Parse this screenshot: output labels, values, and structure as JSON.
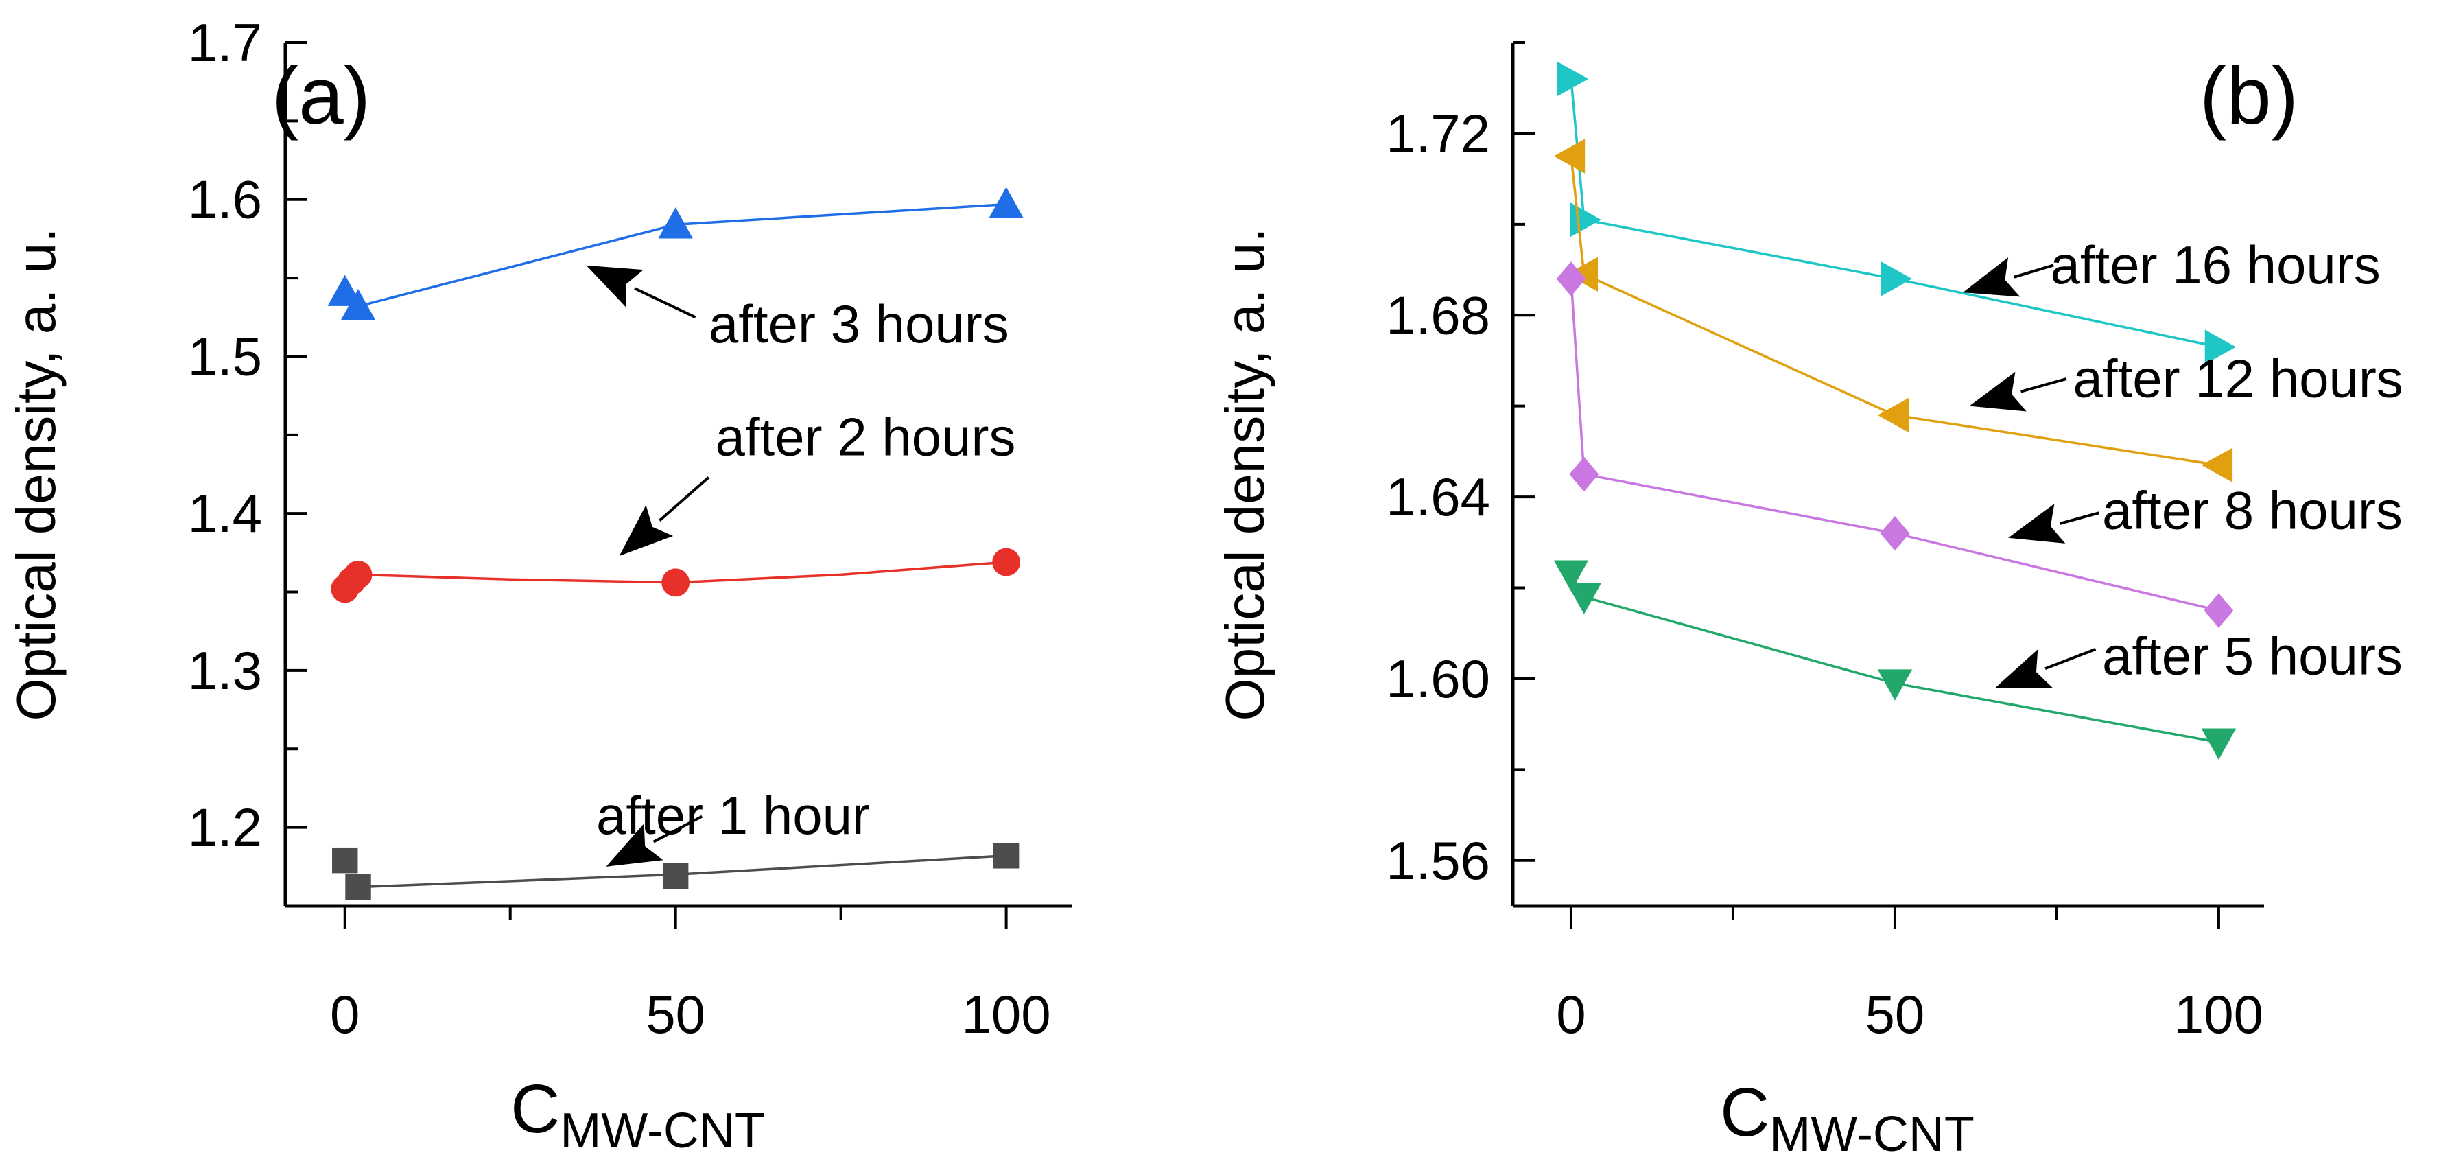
{
  "chart_data": [
    {
      "panel": "(a)",
      "type": "line",
      "xlabel_main": "C",
      "xlabel_sub": "MW-CNT",
      "ylabel": "Optical density, a. u.",
      "xlim": [
        -9,
        110
      ],
      "ylim": [
        1.15,
        1.7
      ],
      "xticks": [
        0,
        50,
        100
      ],
      "yticks": [
        1.2,
        1.3,
        1.4,
        1.5,
        1.6,
        1.7
      ],
      "ytick_labels": [
        "1.2",
        "1.3",
        "1.4",
        "1.5",
        "1.6",
        "1.7"
      ],
      "grid": false,
      "series": [
        {
          "name": "after 1 hour",
          "marker": "square",
          "color": "#4d4d4d",
          "points": [
            [
              0,
              1.179
            ],
            [
              2,
              1.162
            ],
            [
              50,
              1.169
            ],
            [
              100,
              1.182
            ]
          ],
          "fit": [
            [
              2,
              1.162
            ],
            [
              50,
              1.17
            ],
            [
              100,
              1.182
            ]
          ],
          "annotation": {
            "text": "after 1 hour",
            "text_at": [
              38,
              1.196
            ],
            "arrow_from": [
              54,
              1.207
            ],
            "arrow_to": [
              39.5,
              1.175
            ]
          }
        },
        {
          "name": "after 2 hours",
          "marker": "circle",
          "color": "#e8302a",
          "points": [
            [
              0,
              1.352
            ],
            [
              1,
              1.357
            ],
            [
              2,
              1.361
            ],
            [
              50,
              1.356
            ],
            [
              100,
              1.369
            ]
          ],
          "fit": [
            [
              2,
              1.361
            ],
            [
              25,
              1.358
            ],
            [
              50,
              1.356
            ],
            [
              75,
              1.361
            ],
            [
              100,
              1.369
            ]
          ],
          "annotation": {
            "text": "after 2 hours",
            "text_at": [
              56,
              1.437
            ],
            "arrow_from": [
              55,
              1.423
            ],
            "arrow_to": [
              41.5,
              1.373
            ]
          }
        },
        {
          "name": "after 3 hours",
          "marker": "triangle-up",
          "color": "#1f6ee8",
          "points": [
            [
              0,
              1.541
            ],
            [
              2,
              1.532
            ],
            [
              50,
              1.584
            ],
            [
              100,
              1.597
            ]
          ],
          "fit": [
            [
              2,
              1.532
            ],
            [
              50,
              1.584
            ],
            [
              100,
              1.597
            ]
          ],
          "annotation": {
            "text": "after 3 hours",
            "text_at": [
              55,
              1.509
            ],
            "arrow_from": [
              53,
              1.525
            ],
            "arrow_to": [
              36.5,
              1.558
            ]
          }
        }
      ]
    },
    {
      "panel": "(b)",
      "type": "line",
      "xlabel_main": "C",
      "xlabel_sub": "MW-CNT",
      "ylabel": "Optical density, a. u.",
      "xlim": [
        -9,
        107
      ],
      "ylim": [
        1.55,
        1.74
      ],
      "xticks": [
        0,
        50,
        100
      ],
      "yticks": [
        1.56,
        1.6,
        1.64,
        1.68,
        1.72
      ],
      "ytick_labels": [
        "1.56",
        "1.60",
        "1.64",
        "1.68",
        "1.72"
      ],
      "grid": false,
      "series": [
        {
          "name": "after 16 hours",
          "marker": "triangle-right",
          "color": "#1fc6c6",
          "points": [
            [
              0,
              1.732
            ],
            [
              2,
              1.701
            ],
            [
              50,
              1.688
            ],
            [
              100,
              1.673
            ]
          ],
          "fit": [
            [
              0,
              1.732
            ],
            [
              2,
              1.701
            ],
            [
              50,
              1.688
            ],
            [
              100,
              1.673
            ]
          ],
          "annotation": {
            "text": "after 16 hours",
            "text_at": [
              74,
              1.687
            ],
            "arrow_from": [
              74.5,
              1.691
            ],
            "arrow_to": [
              60.5,
              1.685
            ]
          }
        },
        {
          "name": "after 12 hours",
          "marker": "triangle-left",
          "color": "#e0a010",
          "points": [
            [
              0,
              1.715
            ],
            [
              2,
              1.689
            ],
            [
              50,
              1.658
            ],
            [
              100,
              1.647
            ]
          ],
          "fit": [
            [
              0,
              1.715
            ],
            [
              2,
              1.689
            ],
            [
              50,
              1.658
            ],
            [
              100,
              1.647
            ]
          ],
          "annotation": {
            "text": "after 12 hours",
            "text_at": [
              77.5,
              1.662
            ],
            "arrow_from": [
              76.5,
              1.666
            ],
            "arrow_to": [
              61.5,
              1.66
            ]
          }
        },
        {
          "name": "after 8 hours",
          "marker": "diamond",
          "color": "#c878e0",
          "points": [
            [
              0,
              1.688
            ],
            [
              2,
              1.645
            ],
            [
              50,
              1.632
            ],
            [
              100,
              1.615
            ]
          ],
          "fit": [
            [
              0,
              1.688
            ],
            [
              2,
              1.645
            ],
            [
              50,
              1.632
            ],
            [
              100,
              1.615
            ]
          ],
          "annotation": {
            "text": "after 8 hours",
            "text_at": [
              82,
              1.633
            ],
            "arrow_from": [
              81.5,
              1.6365
            ],
            "arrow_to": [
              67.5,
              1.631
            ]
          }
        },
        {
          "name": "after 5 hours",
          "marker": "triangle-down",
          "color": "#22a86a",
          "points": [
            [
              0,
              1.623
            ],
            [
              2,
              1.618
            ],
            [
              50,
              1.599
            ],
            [
              100,
              1.586
            ]
          ],
          "fit": [
            [
              0,
              1.623
            ],
            [
              2,
              1.618
            ],
            [
              50,
              1.599
            ],
            [
              100,
              1.586
            ]
          ],
          "annotation": {
            "text": "after 5 hours",
            "text_at": [
              82,
              1.601
            ],
            "arrow_from": [
              81,
              1.6065
            ],
            "arrow_to": [
              65.5,
              1.598
            ]
          }
        }
      ]
    }
  ]
}
